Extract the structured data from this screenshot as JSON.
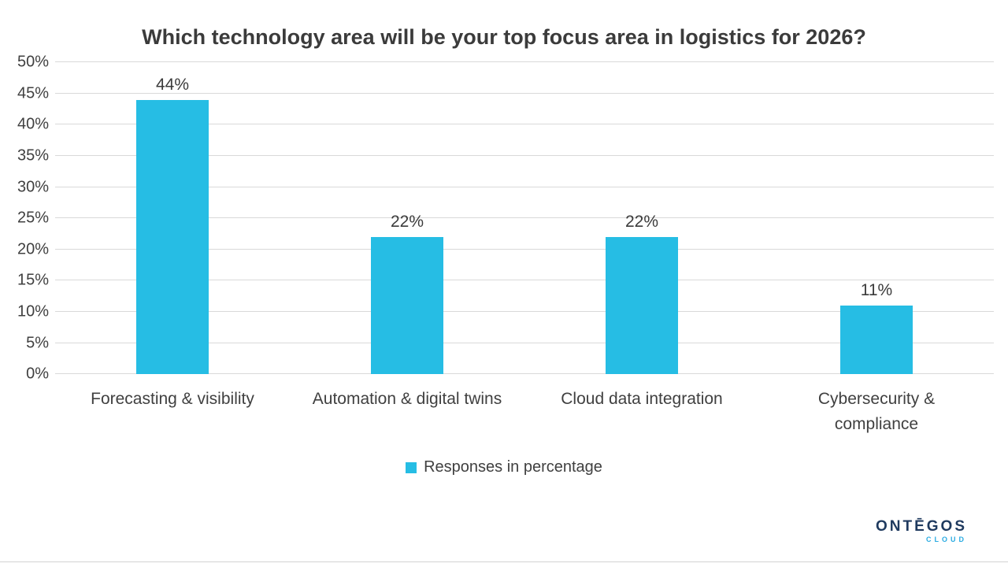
{
  "chart_data": {
    "type": "bar",
    "title": "Which technology area will be your top focus area in logistics for 2026?",
    "categories": [
      "Forecasting & visibility",
      "Automation & digital twins",
      "Cloud data integration",
      "Cybersecurity & compliance"
    ],
    "values": [
      44,
      22,
      22,
      11
    ],
    "value_suffix": "%",
    "xlabel": "",
    "ylabel": "",
    "ylim": [
      0,
      50
    ],
    "ytick_step": 5,
    "ytick_suffix": "%",
    "grid": true,
    "legend": "Responses in percentage",
    "legend_position": "bottom",
    "bar_color": "#26bde4"
  },
  "logo": {
    "name": "ONTĒGOS",
    "sub": "CLOUD"
  },
  "colors": {
    "bar": "#26bde4",
    "text": "#404040",
    "gridline": "#d9d9d9",
    "logo_navy": "#1f3a5f",
    "logo_cyan": "#29abe2"
  }
}
